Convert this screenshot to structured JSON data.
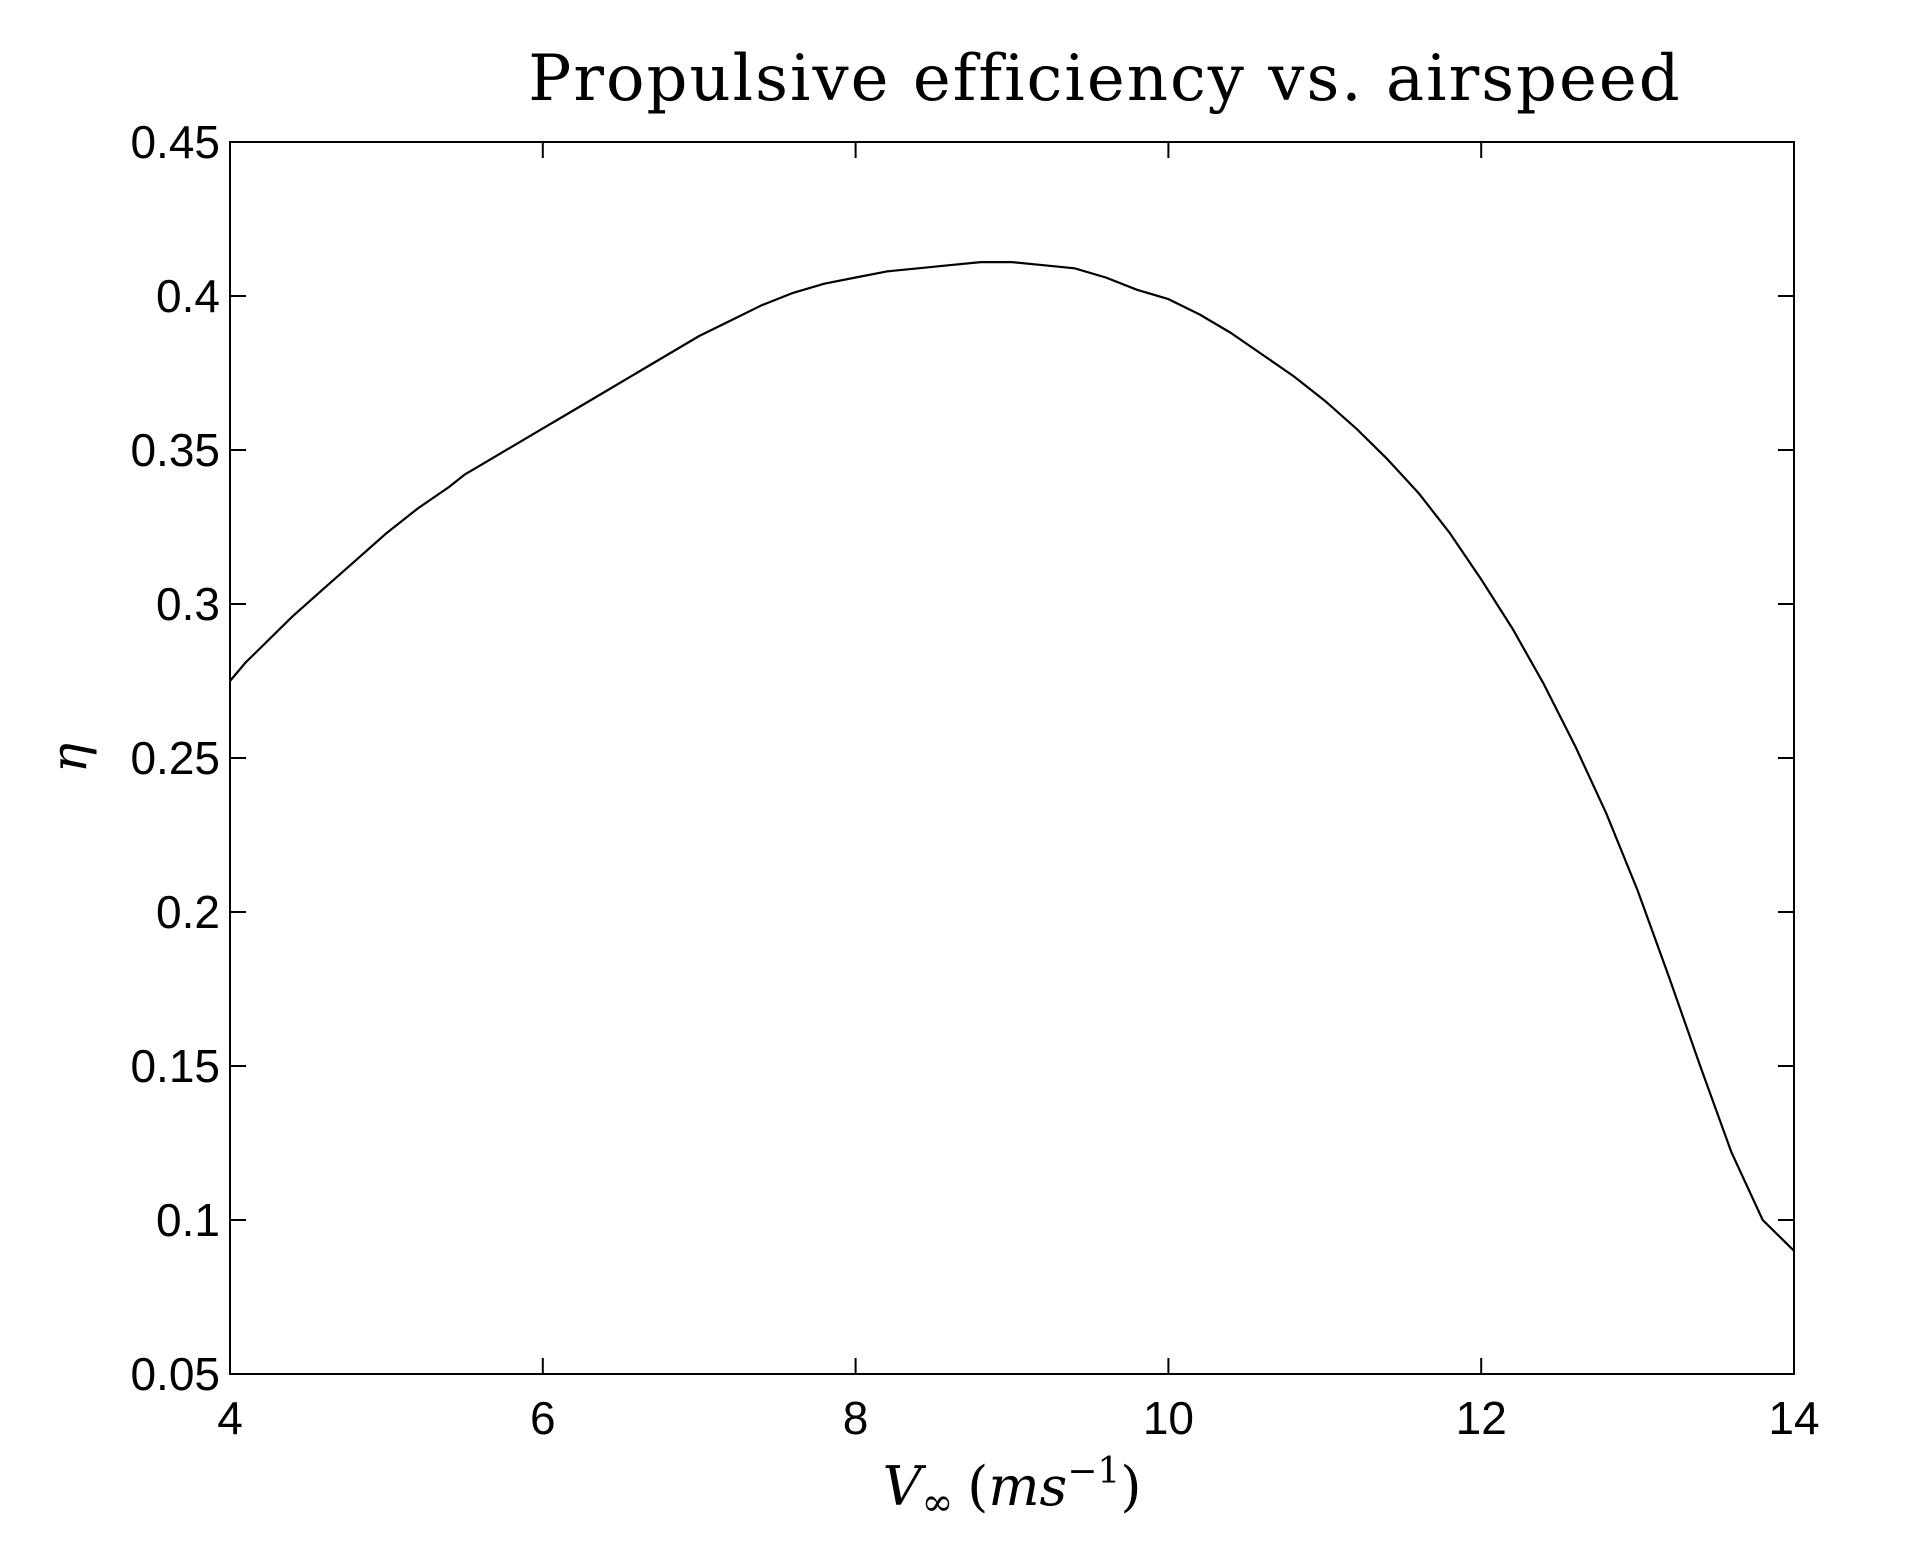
{
  "chart_data": {
    "type": "line",
    "title": "Propulsive efficiency vs. airspeed",
    "xlabel": "V∞ (ms⁻¹)",
    "xlabel_parts": {
      "main": "V",
      "sub": "∞",
      "unit_open": "(",
      "unit": "ms",
      "sup": "−1",
      "unit_close": ")"
    },
    "ylabel": "η",
    "xlim": [
      4,
      14
    ],
    "ylim": [
      0.05,
      0.45
    ],
    "xticks": [
      4,
      6,
      8,
      10,
      12,
      14
    ],
    "yticks": [
      0.05,
      0.1,
      0.15,
      0.2,
      0.25,
      0.3,
      0.35,
      0.4,
      0.45
    ],
    "grid": false,
    "series": [
      {
        "color": "#000000",
        "x": [
          4.0,
          4.1,
          4.2,
          4.4,
          4.6,
          4.8,
          5.0,
          5.2,
          5.4,
          5.5,
          5.6,
          5.8,
          6.0,
          6.2,
          6.4,
          6.6,
          6.8,
          7.0,
          7.2,
          7.4,
          7.6,
          7.8,
          8.0,
          8.2,
          8.4,
          8.6,
          8.8,
          9.0,
          9.2,
          9.4,
          9.6,
          9.8,
          10.0,
          10.2,
          10.4,
          10.6,
          10.8,
          11.0,
          11.2,
          11.4,
          11.6,
          11.8,
          12.0,
          12.2,
          12.4,
          12.6,
          12.8,
          13.0,
          13.2,
          13.4,
          13.6,
          13.8,
          14.0
        ],
        "y": [
          0.275,
          0.281,
          0.286,
          0.296,
          0.305,
          0.314,
          0.323,
          0.331,
          0.338,
          0.342,
          0.345,
          0.351,
          0.357,
          0.363,
          0.369,
          0.375,
          0.381,
          0.387,
          0.392,
          0.397,
          0.401,
          0.404,
          0.406,
          0.408,
          0.409,
          0.41,
          0.411,
          0.411,
          0.41,
          0.409,
          0.406,
          0.402,
          0.399,
          0.394,
          0.388,
          0.381,
          0.374,
          0.366,
          0.357,
          0.347,
          0.336,
          0.323,
          0.308,
          0.292,
          0.274,
          0.254,
          0.232,
          0.207,
          0.179,
          0.15,
          0.122,
          0.1,
          0.09
        ]
      }
    ]
  }
}
